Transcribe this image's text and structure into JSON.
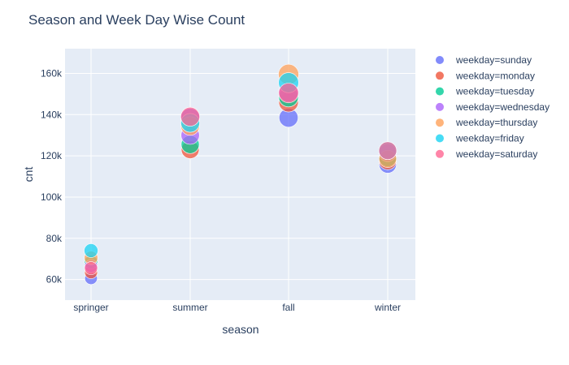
{
  "chart_data": {
    "type": "scatter",
    "title": "Season and Week Day Wise Count",
    "xlabel": "season",
    "ylabel": "cnt",
    "categories": [
      "springer",
      "summer",
      "fall",
      "winter"
    ],
    "ylim": [
      50000,
      172000
    ],
    "yticks": [
      60000,
      80000,
      100000,
      120000,
      140000,
      160000
    ],
    "ytick_labels": [
      "60k",
      "80k",
      "100k",
      "120k",
      "140k",
      "160k"
    ],
    "grid": true,
    "legend_position": "right",
    "series": [
      {
        "name": "weekday=sunday",
        "color": "#636efa",
        "values": [
          60600,
          138500,
          138500,
          115800
        ]
      },
      {
        "name": "weekday=monday",
        "color": "#ef553b",
        "values": [
          63500,
          123000,
          146000,
          117500
        ]
      },
      {
        "name": "weekday=tuesday",
        "color": "#00cc96",
        "values": [
          68500,
          125500,
          148500,
          119000
        ]
      },
      {
        "name": "weekday=wednesday",
        "color": "#ab63fa",
        "values": [
          66500,
          130000,
          151000,
          121500
        ]
      },
      {
        "name": "weekday=thursday",
        "color": "#ffa15a",
        "values": [
          70500,
          134500,
          159500,
          118500
        ]
      },
      {
        "name": "weekday=friday",
        "color": "#19d3f3",
        "values": [
          74000,
          136000,
          155500,
          122500
        ]
      },
      {
        "name": "weekday=saturday",
        "color": "#ff6692",
        "values": [
          65500,
          139000,
          150500,
          122500
        ]
      }
    ]
  }
}
